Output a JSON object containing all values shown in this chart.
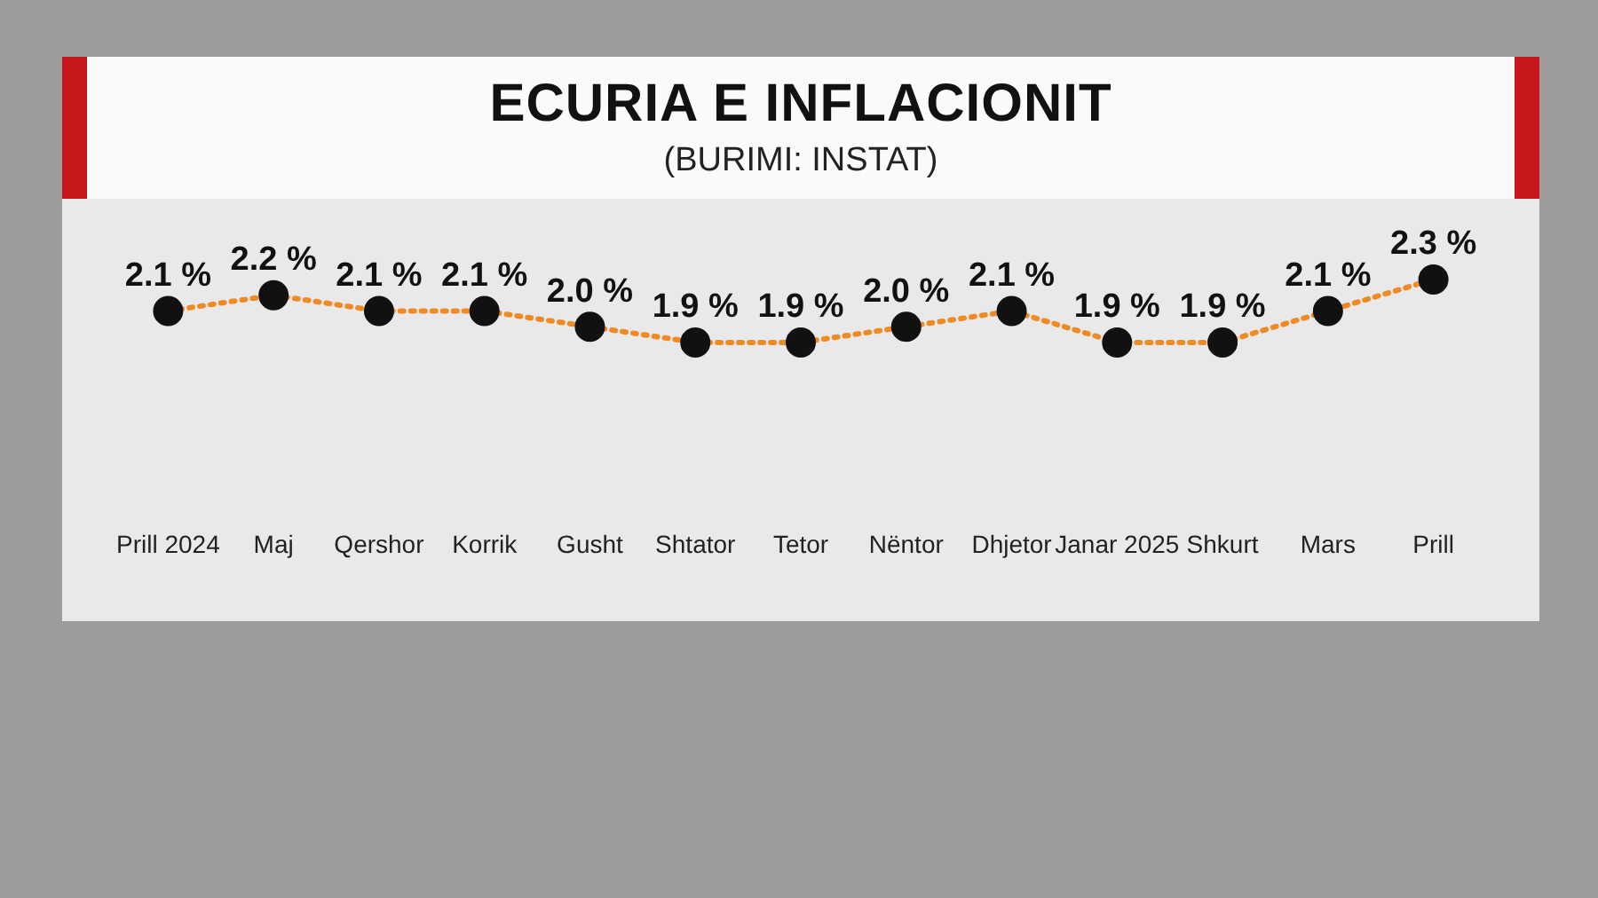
{
  "chart_data": {
    "type": "line",
    "title": "ECURIA E INFLACIONIT",
    "subtitle": "(BURIMI: INSTAT)",
    "categories": [
      "Prill 2024",
      "Maj",
      "Qershor",
      "Korrik",
      "Gusht",
      "Shtator",
      "Tetor",
      "Nëntor",
      "Dhjetor",
      "Janar 2025",
      "Shkurt",
      "Mars",
      "Prill"
    ],
    "series": [
      {
        "color": "#f08a24",
        "values": [
          2.1,
          2.2,
          2.1,
          2.1,
          2.0,
          1.9,
          1.9,
          2.0,
          2.1,
          1.9,
          1.9,
          2.1,
          2.3
        ],
        "value_labels": [
          "2.1 %",
          "2.2 %",
          "2.1 %",
          "2.1 %",
          "2.0 %",
          "1.9 %",
          "1.9 %",
          "2.0 %",
          "2.1 %",
          "1.9 %",
          "1.9 %",
          "2.1 %",
          "2.3 %"
        ]
      }
    ],
    "marker": "circle",
    "line_style": "dotted",
    "grid": false,
    "legend": false
  }
}
